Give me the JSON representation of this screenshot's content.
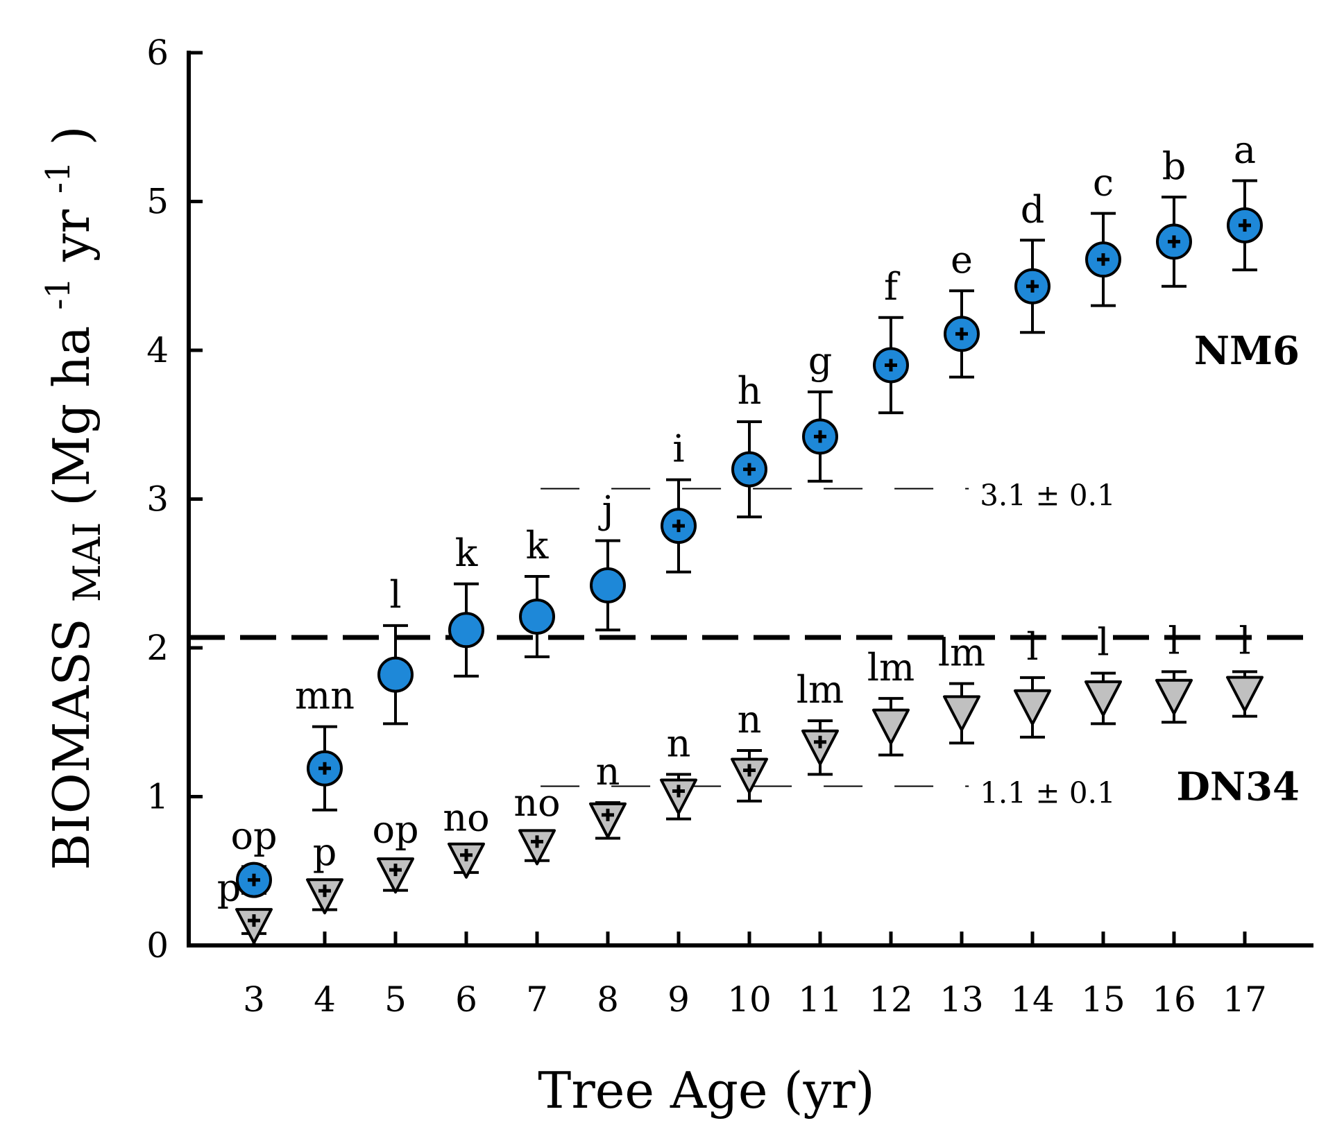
{
  "chart_data": {
    "type": "scatter",
    "xlabel": "Tree Age (yr)",
    "ylabel": {
      "main": "BIOMASS",
      "subscript": "MAI",
      "units_a": " (Mg ha",
      "exp_a": "-1",
      "units_b": " yr",
      "exp_b": "-1",
      "units_c": ")"
    },
    "x": [
      3,
      4,
      5,
      6,
      7,
      8,
      9,
      10,
      11,
      12,
      13,
      14,
      15,
      16,
      17
    ],
    "ylim": [
      0,
      6
    ],
    "yticks": [
      "0",
      "1",
      "2",
      "3",
      "4",
      "5",
      "6"
    ],
    "series": [
      {
        "name": "NM6",
        "marker": "circle",
        "color": "#1e88d8",
        "values": [
          0.44,
          1.19,
          1.82,
          2.12,
          2.21,
          2.42,
          2.82,
          3.2,
          3.42,
          3.9,
          4.11,
          4.43,
          4.61,
          4.73,
          4.84
        ],
        "errors": [
          0.09,
          0.28,
          0.33,
          0.31,
          0.27,
          0.3,
          0.31,
          0.32,
          0.3,
          0.32,
          0.29,
          0.31,
          0.31,
          0.3,
          0.3
        ],
        "letters": [
          "op",
          "mn",
          "l",
          "k",
          "k",
          "j",
          "i",
          "h",
          "g",
          "f",
          "e",
          "d",
          "c",
          "b",
          "a"
        ],
        "marked_plus": [
          true,
          true,
          false,
          false,
          false,
          false,
          true,
          true,
          true,
          true,
          true,
          true,
          true,
          true,
          true
        ]
      },
      {
        "name": "DN34",
        "marker": "triangle-down",
        "color": "#c0c0c0",
        "values": [
          0.13,
          0.33,
          0.47,
          0.57,
          0.66,
          0.84,
          1.0,
          1.14,
          1.33,
          1.47,
          1.56,
          1.6,
          1.66,
          1.67,
          1.69
        ],
        "errors": [
          0.05,
          0.09,
          0.1,
          0.08,
          0.09,
          0.12,
          0.15,
          0.17,
          0.18,
          0.19,
          0.2,
          0.2,
          0.17,
          0.17,
          0.15
        ],
        "letters": [
          "p",
          "p",
          "op",
          "no",
          "no",
          "n",
          "n",
          "n",
          "lm",
          "lm",
          "lm",
          "l",
          "l",
          "l",
          "l"
        ],
        "marked_plus": [
          true,
          true,
          true,
          true,
          true,
          true,
          true,
          true,
          true,
          false,
          false,
          false,
          false,
          false,
          false
        ]
      }
    ],
    "reference_lines": [
      {
        "y": 2.07,
        "style": "heavy-dashed",
        "from_x": 2,
        "to_x": 17.9
      },
      {
        "y": 3.07,
        "style": "thin-dashed",
        "label": "3.1 ± 0.1",
        "from_x": 7.05,
        "to_x": 13.1
      },
      {
        "y": 1.07,
        "style": "thin-dashed",
        "label": "1.1 ± 0.1",
        "from_x": 7.05,
        "to_x": 13.1
      }
    ],
    "series_labels": [
      {
        "text": "NM6",
        "y": 4.0
      },
      {
        "text": "DN34",
        "y": 1.07
      }
    ]
  }
}
